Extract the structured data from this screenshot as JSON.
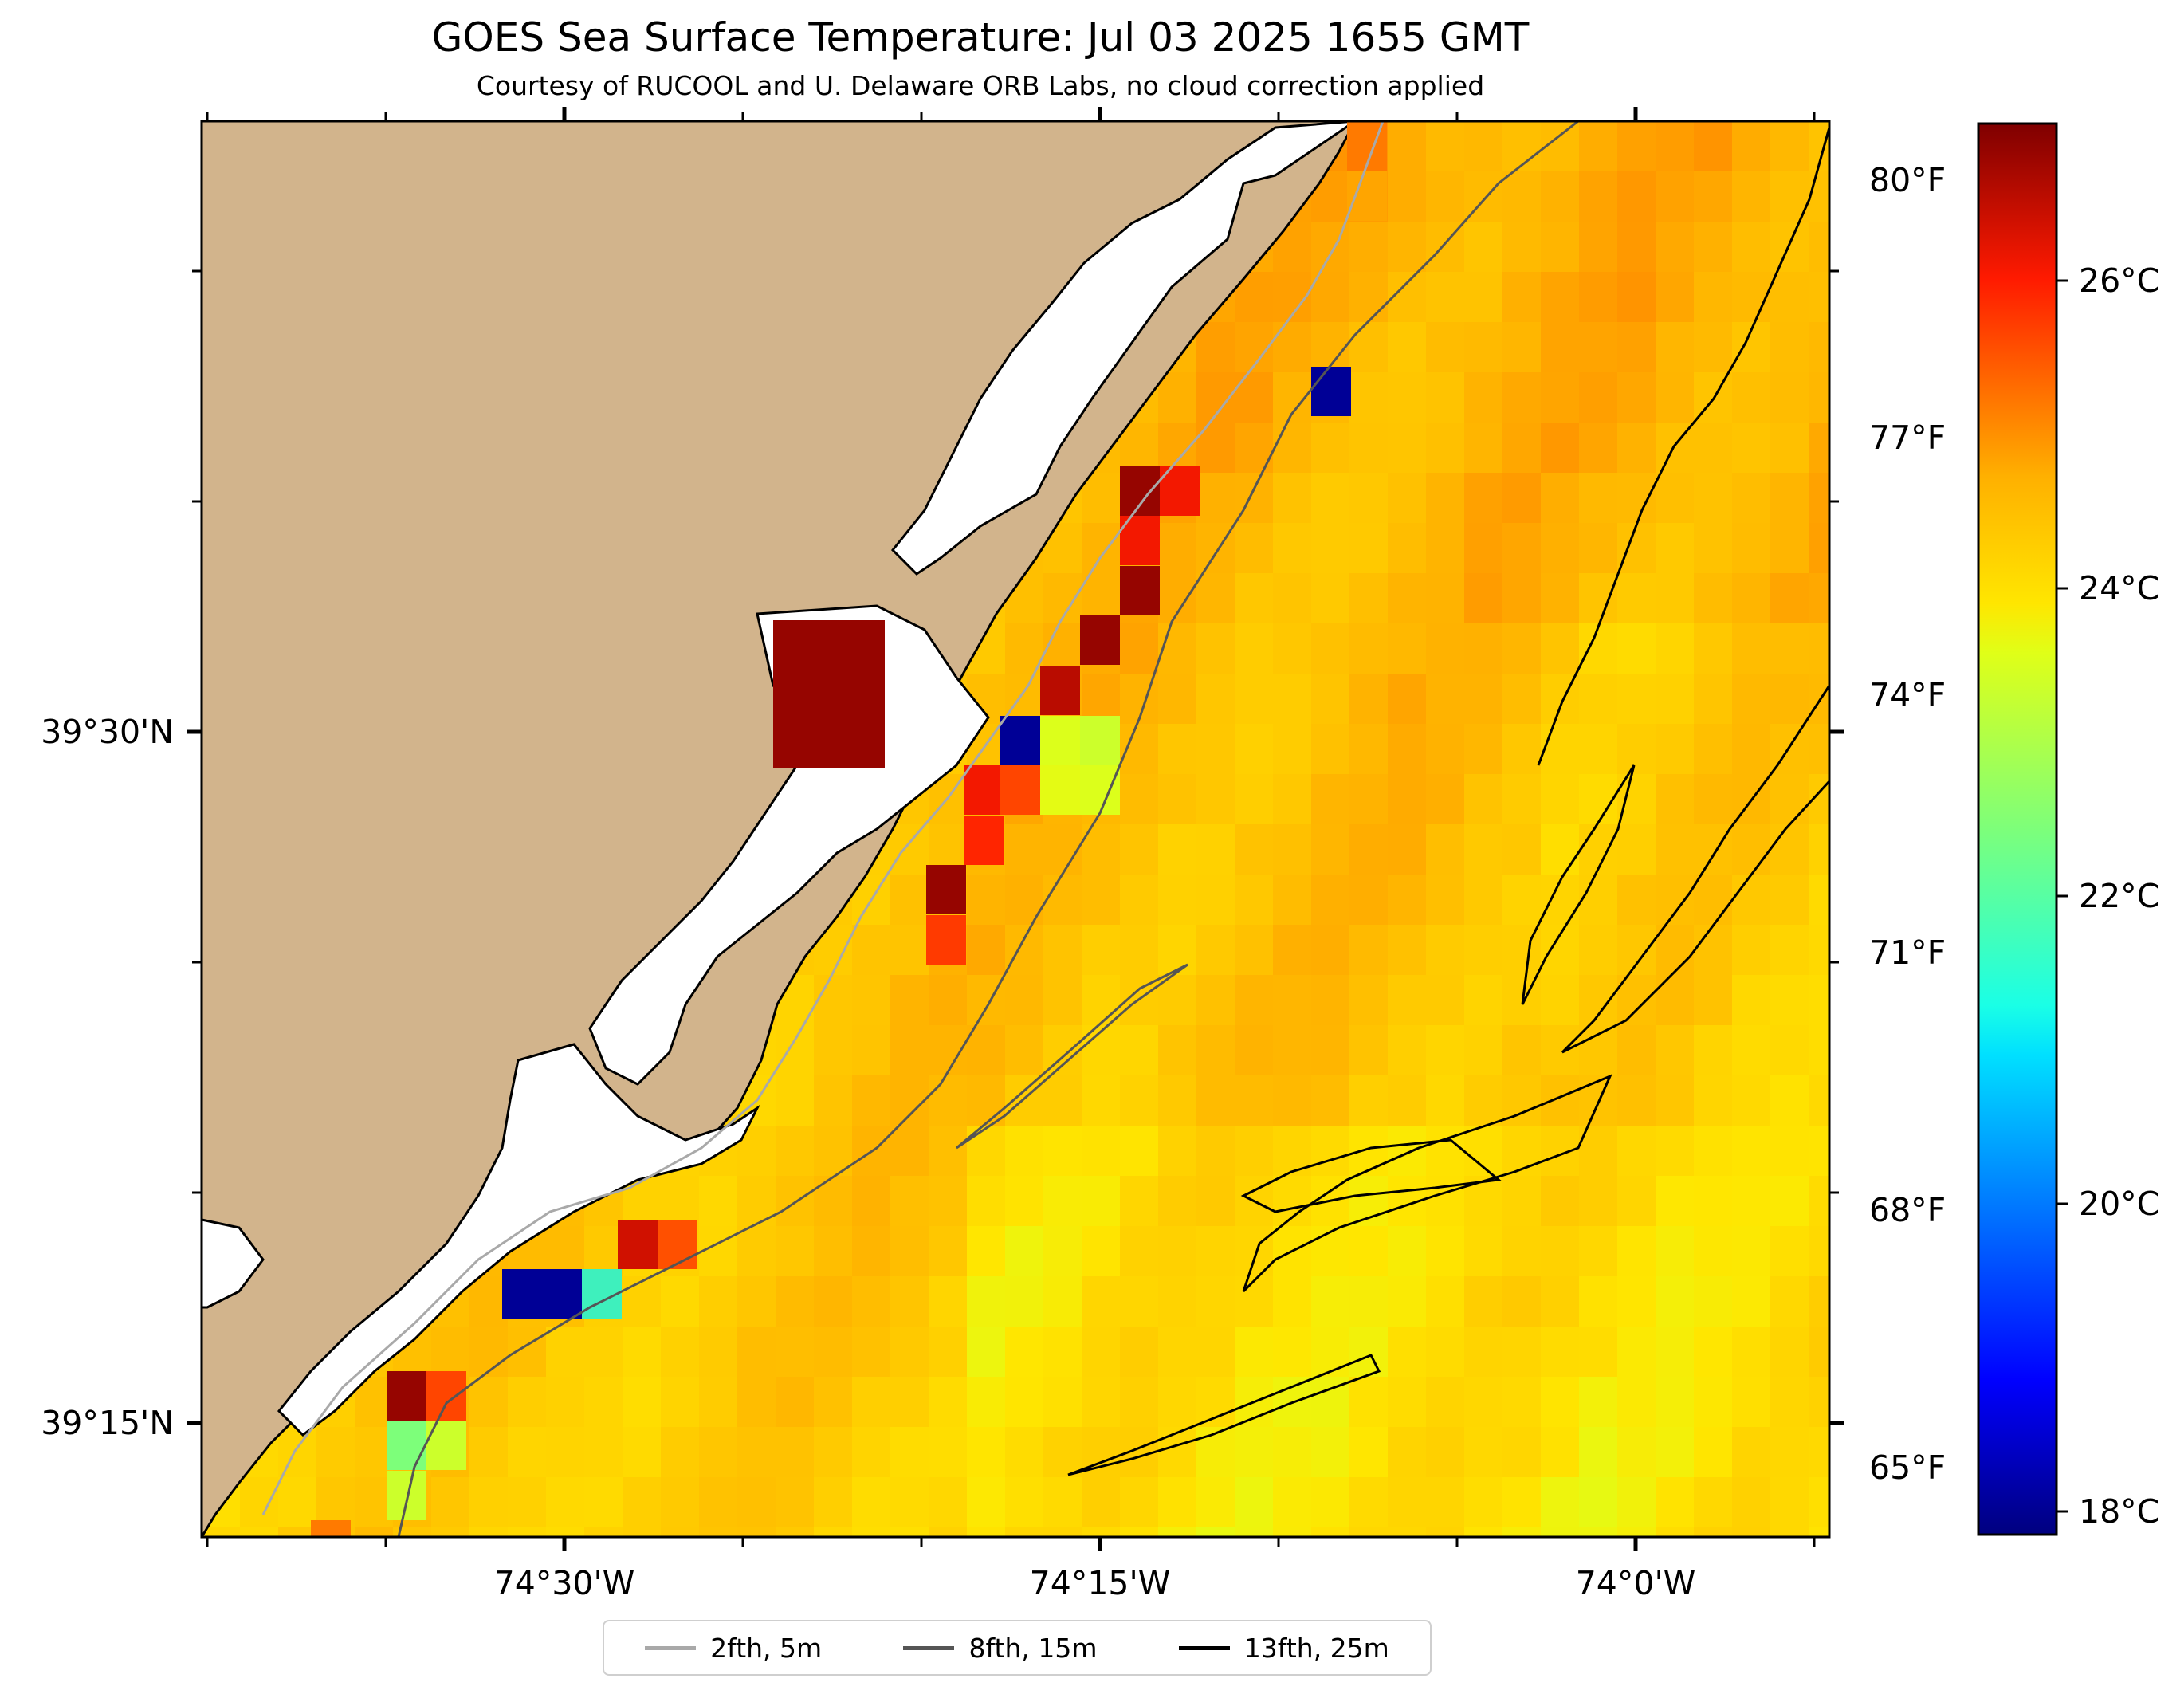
{
  "title": "GOES Sea Surface Temperature: Jul 03 2025 1655 GMT",
  "subtitle": "Courtesy of RUCOOL and U. Delaware ORB Labs, no cloud correction applied",
  "axes": {
    "x_ticks": [
      "74°30'W",
      "74°15'W",
      "74°0'W"
    ],
    "y_ticks": [
      "39°30'N",
      "39°15'N"
    ]
  },
  "colorbar": {
    "celsius_labels": [
      "26°C",
      "24°C",
      "22°C",
      "20°C",
      "18°C"
    ],
    "fahrenheit_labels": [
      "80°F",
      "77°F",
      "74°F",
      "71°F",
      "68°F",
      "65°F"
    ],
    "range_c": [
      17.5,
      28.0
    ],
    "colormap": "jet"
  },
  "legend": {
    "items": [
      {
        "label": "2fth, 5m",
        "color": "#a9a9a9"
      },
      {
        "label": "8fth, 15m",
        "color": "#555555"
      },
      {
        "label": "13fth, 25m",
        "color": "#000000"
      }
    ]
  },
  "colors": {
    "land": "#d2b48c",
    "no_data": "#ffffff"
  }
}
